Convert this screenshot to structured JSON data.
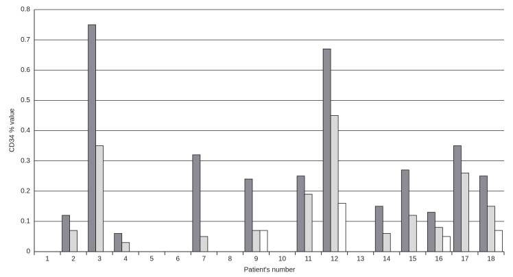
{
  "chart_data": {
    "type": "bar",
    "y_label": "CD34 % value",
    "x_label": "Patient's number",
    "categories": [
      "1",
      "2",
      "3",
      "4",
      "5",
      "6",
      "7",
      "8",
      "9",
      "10",
      "11",
      "12",
      "13",
      "14",
      "15",
      "16",
      "17",
      "18"
    ],
    "series": [
      {
        "color": "#8c8c94",
        "values": [
          0,
          0.12,
          0.75,
          0.06,
          0,
          0,
          0.32,
          0,
          0.24,
          0,
          0.25,
          0.67,
          0,
          0.15,
          0.27,
          0.13,
          0.35,
          0.25
        ]
      },
      {
        "color": "#d9d9d9",
        "values": [
          0,
          0.07,
          0.35,
          0.03,
          0,
          0,
          0.05,
          0,
          0.07,
          0,
          0.19,
          0.45,
          0,
          0.06,
          0.12,
          0.08,
          0.26,
          0.15
        ]
      },
      {
        "color": "#ffffff",
        "values": [
          0,
          0,
          0,
          0,
          0,
          0,
          0,
          0,
          0.07,
          0,
          0,
          0.16,
          0,
          0,
          0,
          0.05,
          0,
          0.07
        ]
      }
    ],
    "ylim": [
      0,
      0.8
    ],
    "yticks": [
      0,
      0.1,
      0.2,
      0.3,
      0.4,
      0.5,
      0.6,
      0.7,
      0.8
    ],
    "grid": true
  }
}
